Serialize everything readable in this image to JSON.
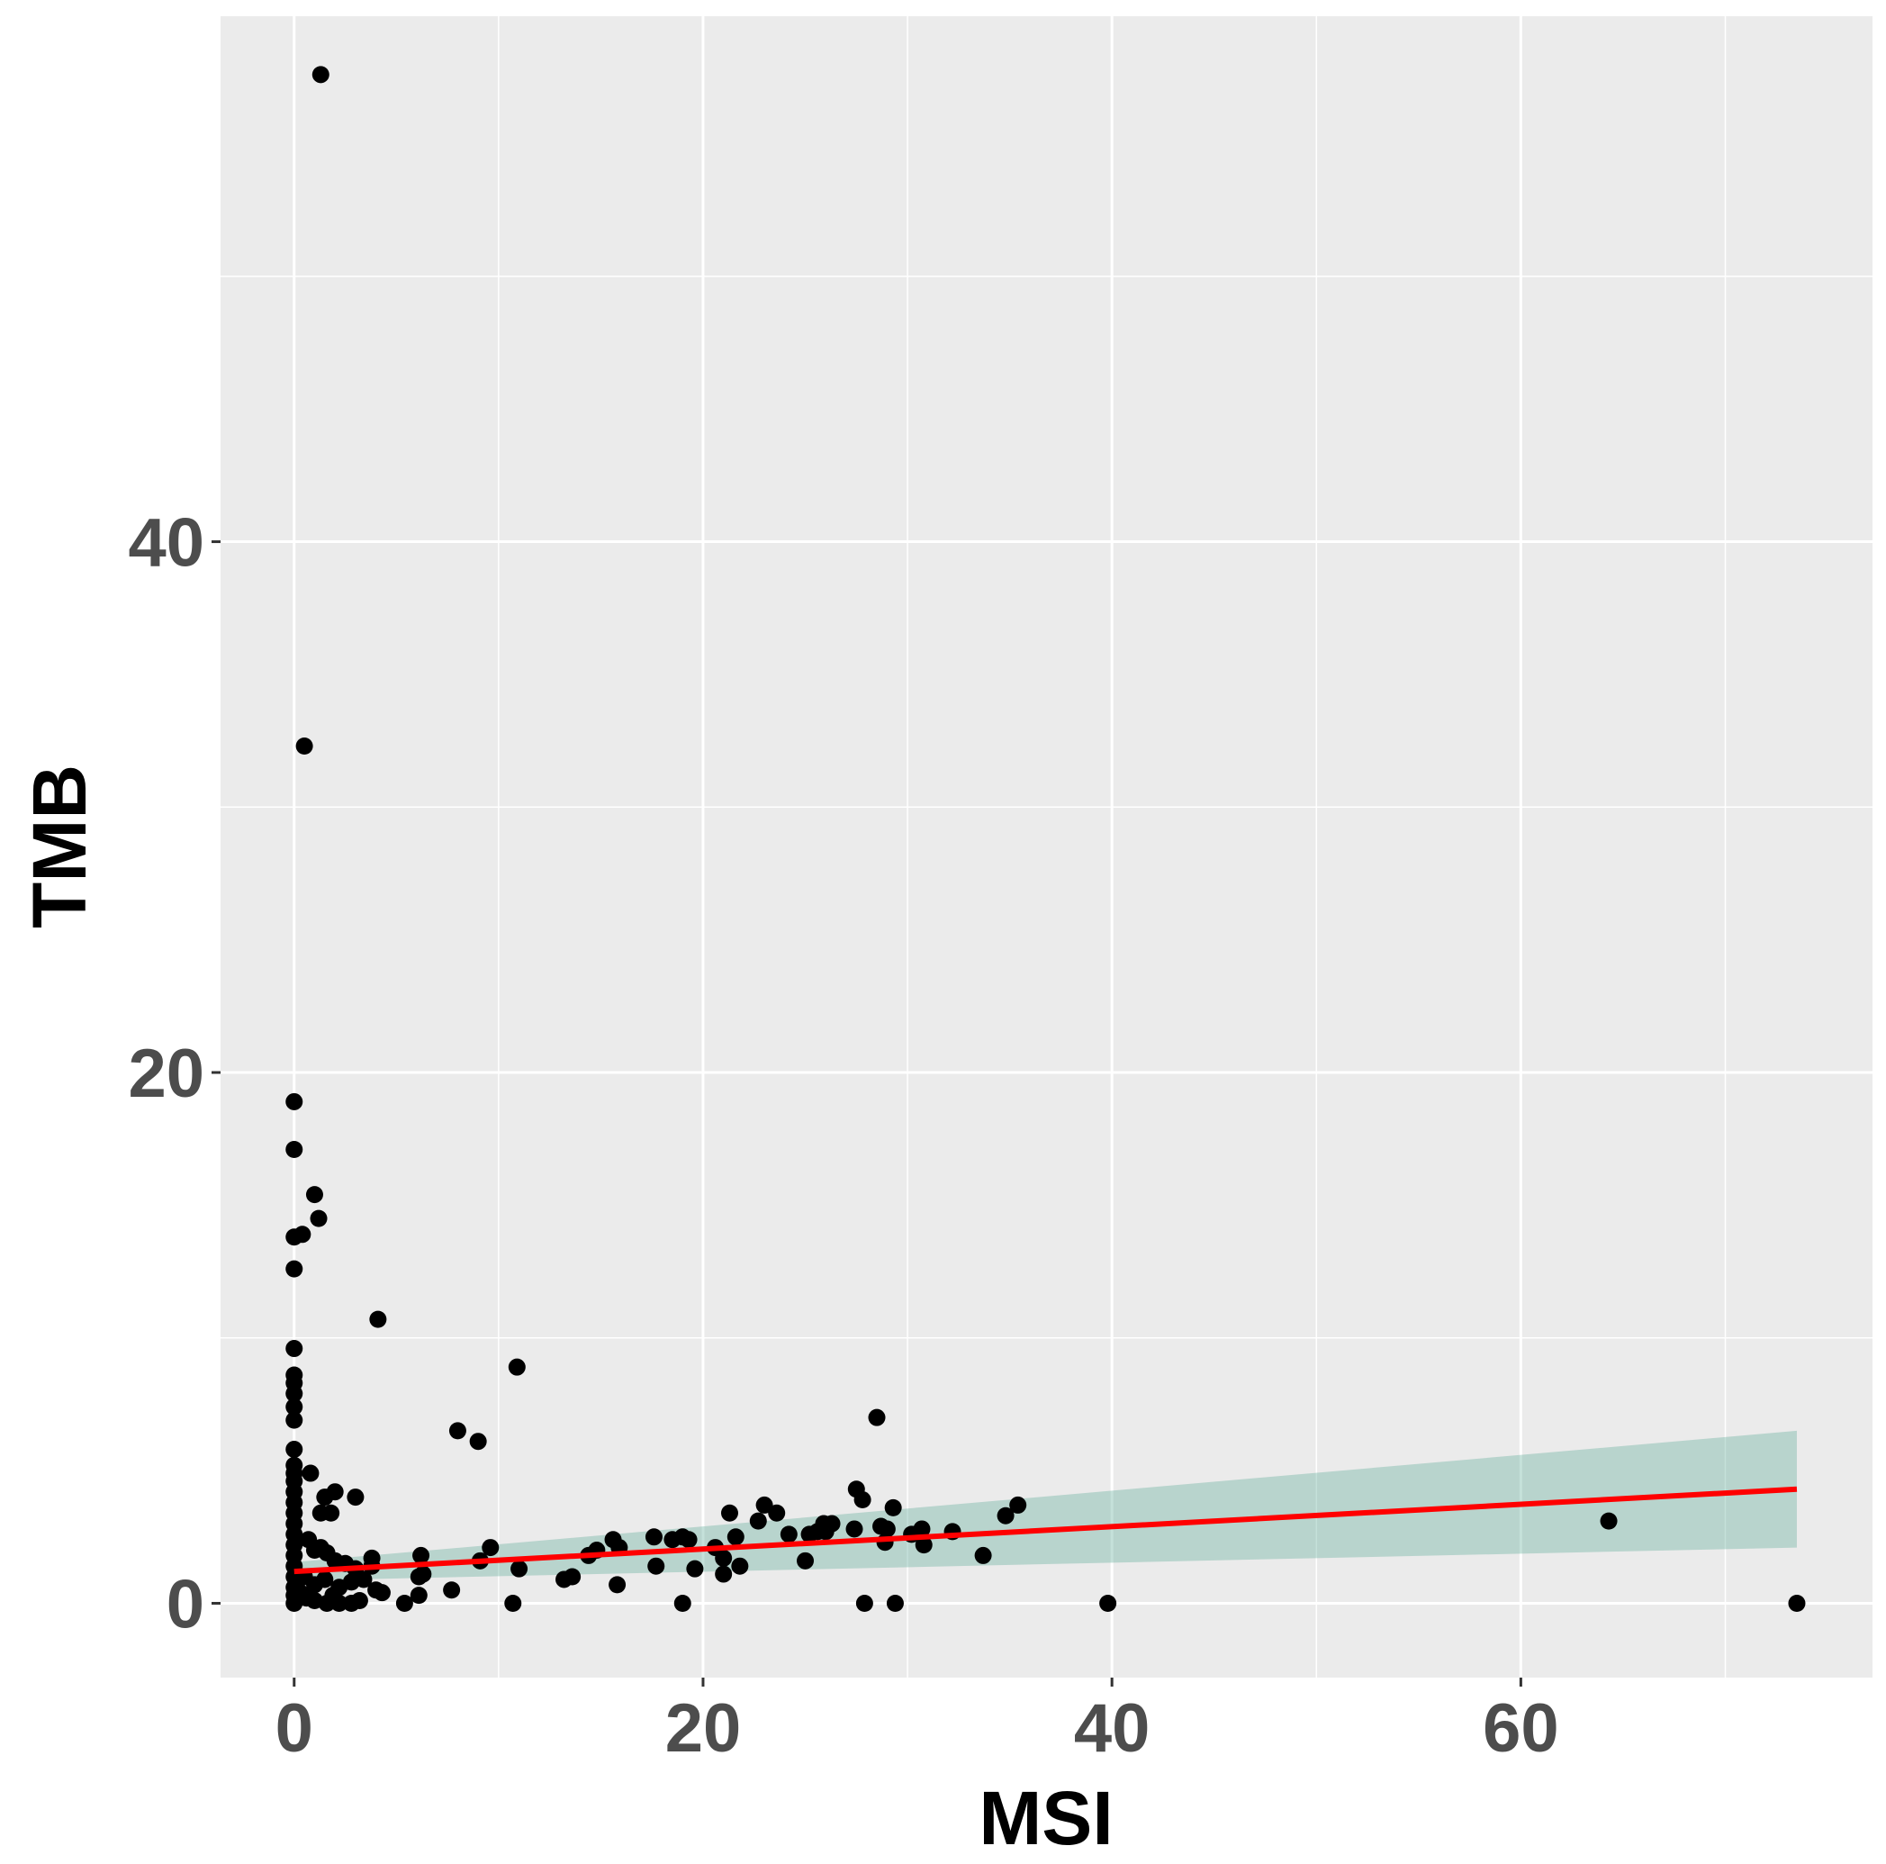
{
  "chart_data": {
    "type": "scatter",
    "title": "",
    "xlabel": "MSI",
    "ylabel": "TMB",
    "xlim": [
      -3.6,
      77.2
    ],
    "ylim": [
      -2.8,
      59.8
    ],
    "x_ticks": [
      0,
      20,
      40,
      60
    ],
    "y_ticks": [
      0,
      20,
      40
    ],
    "x_minor_grid": [
      10,
      30,
      50,
      70
    ],
    "y_minor_grid": [
      10,
      30,
      50
    ],
    "grid": true,
    "colors": {
      "panel_background": "#ebebeb",
      "grid": "#ffffff",
      "points": "#000000",
      "fit_line": "#ff0000",
      "confidence_band": "#5aaa96"
    },
    "points": [
      [
        1.3,
        57.6
      ],
      [
        0.5,
        32.3
      ],
      [
        0.0,
        18.9
      ],
      [
        0.0,
        17.1
      ],
      [
        1.0,
        15.4
      ],
      [
        1.2,
        14.5
      ],
      [
        0.0,
        13.8
      ],
      [
        0.4,
        13.9
      ],
      [
        0.0,
        12.6
      ],
      [
        4.1,
        10.7
      ],
      [
        0.0,
        9.6
      ],
      [
        0.0,
        8.6
      ],
      [
        0.0,
        8.3
      ],
      [
        0.0,
        7.9
      ],
      [
        0.0,
        7.4
      ],
      [
        0.0,
        6.9
      ],
      [
        0.0,
        5.8
      ],
      [
        0.0,
        5.2
      ],
      [
        0.0,
        4.9
      ],
      [
        0.0,
        4.6
      ],
      [
        0.0,
        4.2
      ],
      [
        0.0,
        3.8
      ],
      [
        0.0,
        3.4
      ],
      [
        0.0,
        3.0
      ],
      [
        0.0,
        2.6
      ],
      [
        0.0,
        2.2
      ],
      [
        0.0,
        1.8
      ],
      [
        0.0,
        1.4
      ],
      [
        0.0,
        1.0
      ],
      [
        0.0,
        0.6
      ],
      [
        0.0,
        0.3
      ],
      [
        0.0,
        0.0
      ],
      [
        0.8,
        4.9
      ],
      [
        1.5,
        4.0
      ],
      [
        2.0,
        4.2
      ],
      [
        3.0,
        4.0
      ],
      [
        1.3,
        3.4
      ],
      [
        1.8,
        3.4
      ],
      [
        0.7,
        2.4
      ],
      [
        1.0,
        2.0
      ],
      [
        1.3,
        2.1
      ],
      [
        1.6,
        1.9
      ],
      [
        2.0,
        1.6
      ],
      [
        2.5,
        1.5
      ],
      [
        3.0,
        1.3
      ],
      [
        0.5,
        1.0
      ],
      [
        1.0,
        0.7
      ],
      [
        1.5,
        0.9
      ],
      [
        2.2,
        0.6
      ],
      [
        2.8,
        0.8
      ],
      [
        3.4,
        0.9
      ],
      [
        0.6,
        0.2
      ],
      [
        1.0,
        0.1
      ],
      [
        1.6,
        0.0
      ],
      [
        2.2,
        0.0
      ],
      [
        2.8,
        0.0
      ],
      [
        3.2,
        0.1
      ],
      [
        1.9,
        0.3
      ],
      [
        0.3,
        0.4
      ],
      [
        3.8,
        1.4
      ],
      [
        3.8,
        1.7
      ],
      [
        4.0,
        0.5
      ],
      [
        4.3,
        0.4
      ],
      [
        5.4,
        0.0
      ],
      [
        6.1,
        0.3
      ],
      [
        6.1,
        1.0
      ],
      [
        6.2,
        1.8
      ],
      [
        6.3,
        1.1
      ],
      [
        7.7,
        0.5
      ],
      [
        8.0,
        6.5
      ],
      [
        9.0,
        6.1
      ],
      [
        9.1,
        1.6
      ],
      [
        9.6,
        2.1
      ],
      [
        10.7,
        0.0
      ],
      [
        10.9,
        8.9
      ],
      [
        11.0,
        1.3
      ],
      [
        13.2,
        0.9
      ],
      [
        13.6,
        1.0
      ],
      [
        14.4,
        1.8
      ],
      [
        14.8,
        2.0
      ],
      [
        15.6,
        2.4
      ],
      [
        15.9,
        2.1
      ],
      [
        15.8,
        0.7
      ],
      [
        17.6,
        2.5
      ],
      [
        17.7,
        1.4
      ],
      [
        18.5,
        2.4
      ],
      [
        19.0,
        2.5
      ],
      [
        19.3,
        2.4
      ],
      [
        19.0,
        0.0
      ],
      [
        19.6,
        1.3
      ],
      [
        20.6,
        2.1
      ],
      [
        21.0,
        1.7
      ],
      [
        21.0,
        1.1
      ],
      [
        21.3,
        3.4
      ],
      [
        21.6,
        2.5
      ],
      [
        21.8,
        1.4
      ],
      [
        22.7,
        3.1
      ],
      [
        23.0,
        3.7
      ],
      [
        23.6,
        3.4
      ],
      [
        24.2,
        2.6
      ],
      [
        25.0,
        1.6
      ],
      [
        25.2,
        2.6
      ],
      [
        25.6,
        2.7
      ],
      [
        25.9,
        3.0
      ],
      [
        26.0,
        2.7
      ],
      [
        26.3,
        3.0
      ],
      [
        27.4,
        2.8
      ],
      [
        27.5,
        4.3
      ],
      [
        27.8,
        3.9
      ],
      [
        27.9,
        0.0
      ],
      [
        28.5,
        7.0
      ],
      [
        28.7,
        2.9
      ],
      [
        28.9,
        2.3
      ],
      [
        29.0,
        2.8
      ],
      [
        29.3,
        3.6
      ],
      [
        29.4,
        0.0
      ],
      [
        30.2,
        2.6
      ],
      [
        30.7,
        2.8
      ],
      [
        30.8,
        2.2
      ],
      [
        32.2,
        2.7
      ],
      [
        33.7,
        1.8
      ],
      [
        34.8,
        3.3
      ],
      [
        35.4,
        3.7
      ],
      [
        39.8,
        0.0
      ],
      [
        64.3,
        3.1
      ],
      [
        73.5,
        0.0
      ]
    ],
    "fit_line": {
      "x": [
        0,
        73.5
      ],
      "y": [
        1.2,
        4.3
      ]
    },
    "confidence_band": {
      "x": [
        0,
        73.5
      ],
      "upper": [
        1.55,
        6.5
      ],
      "lower": [
        0.85,
        2.1
      ]
    }
  }
}
